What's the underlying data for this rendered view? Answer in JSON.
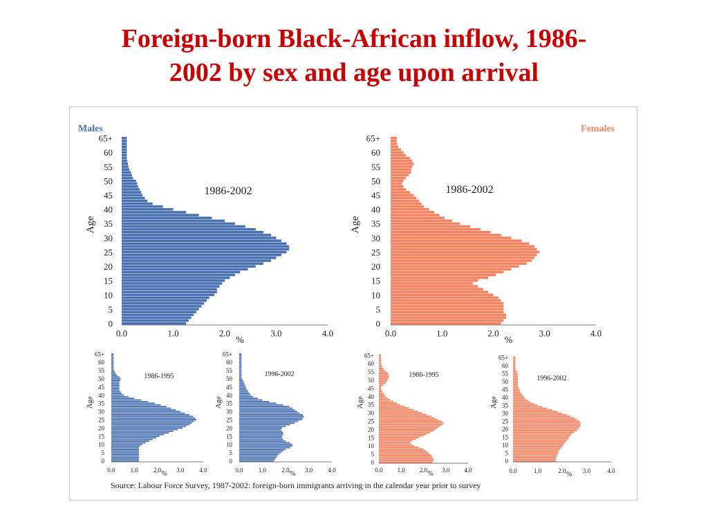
{
  "slide": {
    "title_line1": "Foreign-born Black-African inflow, 1986-",
    "title_line2": "2002 by sex and age upon arrival",
    "source": "Source: Labour Force Survey, 1987-2002: foreign-born immigrants arriving in the calendar year prior to survey"
  },
  "colors": {
    "males": "#4a72b0",
    "females": "#f8825f",
    "title": "#cc0000"
  },
  "chart_data": [
    {
      "type": "bar",
      "orientation": "horizontal",
      "panel": "Males",
      "period": "1986-2002",
      "ylabel": "Age",
      "xlabel": "%",
      "xlim": [
        0,
        4
      ],
      "xticks": [
        "0.0",
        "1.0",
        "2.0",
        "3.0",
        "4.0"
      ],
      "yticks": [
        "0",
        "5",
        "10",
        "15",
        "20",
        "25",
        "30",
        "35",
        "40",
        "45",
        "50",
        "55",
        "60",
        "65+"
      ],
      "color": "#4a72b0",
      "ages": [
        0,
        1,
        2,
        3,
        4,
        5,
        6,
        7,
        8,
        9,
        10,
        11,
        12,
        13,
        14,
        15,
        16,
        17,
        18,
        19,
        20,
        21,
        22,
        23,
        24,
        25,
        26,
        27,
        28,
        29,
        30,
        31,
        32,
        33,
        34,
        35,
        36,
        37,
        38,
        39,
        40,
        41,
        42,
        43,
        44,
        45,
        46,
        47,
        48,
        49,
        50,
        51,
        52,
        53,
        54,
        55,
        56,
        57,
        58,
        59,
        60,
        61,
        62,
        63,
        64,
        65
      ],
      "values": [
        1.25,
        1.3,
        1.35,
        1.4,
        1.45,
        1.5,
        1.55,
        1.6,
        1.65,
        1.7,
        1.8,
        1.85,
        1.85,
        1.9,
        1.95,
        2.0,
        2.1,
        2.2,
        2.3,
        2.45,
        2.6,
        2.75,
        2.9,
        3.0,
        3.1,
        3.2,
        3.25,
        3.25,
        3.2,
        3.1,
        3.0,
        2.9,
        2.75,
        2.6,
        2.4,
        2.2,
        2.0,
        1.75,
        1.5,
        1.25,
        1.0,
        0.8,
        0.6,
        0.5,
        0.45,
        0.4,
        0.38,
        0.35,
        0.32,
        0.3,
        0.28,
        0.22,
        0.2,
        0.18,
        0.15,
        0.13,
        0.12,
        0.11,
        0.1,
        0.1,
        0.1,
        0.1,
        0.1,
        0.1,
        0.1,
        0.1
      ]
    },
    {
      "type": "bar",
      "orientation": "horizontal",
      "panel": "Females",
      "period": "1986-2002",
      "ylabel": "Age",
      "xlabel": "%",
      "xlim": [
        0,
        4
      ],
      "xticks": [
        "0.0",
        "1.0",
        "2.0",
        "3.0",
        "4.0"
      ],
      "yticks": [
        "0",
        "5",
        "10",
        "15",
        "20",
        "25",
        "30",
        "35",
        "40",
        "45",
        "50",
        "55",
        "60",
        "65+"
      ],
      "color": "#f8825f",
      "ages": [
        0,
        1,
        2,
        3,
        4,
        5,
        6,
        7,
        8,
        9,
        10,
        11,
        12,
        13,
        14,
        15,
        16,
        17,
        18,
        19,
        20,
        21,
        22,
        23,
        24,
        25,
        26,
        27,
        28,
        29,
        30,
        31,
        32,
        33,
        34,
        35,
        36,
        37,
        38,
        39,
        40,
        41,
        42,
        43,
        44,
        45,
        46,
        47,
        48,
        49,
        50,
        51,
        52,
        53,
        54,
        55,
        56,
        57,
        58,
        59,
        60,
        61,
        62,
        63,
        64,
        65
      ],
      "values": [
        2.15,
        2.2,
        2.25,
        2.25,
        2.2,
        2.2,
        2.2,
        2.2,
        2.15,
        2.1,
        2.0,
        1.9,
        1.8,
        1.7,
        1.6,
        1.7,
        1.9,
        2.05,
        2.2,
        2.35,
        2.5,
        2.65,
        2.75,
        2.8,
        2.85,
        2.9,
        2.85,
        2.8,
        2.7,
        2.55,
        2.35,
        2.15,
        1.95,
        1.75,
        1.55,
        1.35,
        1.2,
        1.05,
        0.95,
        0.85,
        0.75,
        0.65,
        0.6,
        0.55,
        0.5,
        0.45,
        0.38,
        0.3,
        0.25,
        0.22,
        0.25,
        0.3,
        0.35,
        0.4,
        0.4,
        0.42,
        0.45,
        0.42,
        0.38,
        0.3,
        0.25,
        0.2,
        0.15,
        0.12,
        0.12,
        0.12
      ]
    },
    {
      "type": "bar",
      "orientation": "horizontal",
      "panel": "Males",
      "period": "1986-1995",
      "ylabel": "Age",
      "xlabel": "%",
      "xlim": [
        0,
        4
      ],
      "xticks": [
        "0.0",
        "1.0",
        "2.0",
        "3.0",
        "4.0"
      ],
      "yticks": [
        "0",
        "5",
        "10",
        "15",
        "20",
        "25",
        "30",
        "35",
        "40",
        "45",
        "50",
        "55",
        "60",
        "65+"
      ],
      "color": "#4a72b0",
      "ages": [
        0,
        1,
        2,
        3,
        4,
        5,
        6,
        7,
        8,
        9,
        10,
        11,
        12,
        13,
        14,
        15,
        16,
        17,
        18,
        19,
        20,
        21,
        22,
        23,
        24,
        25,
        26,
        27,
        28,
        29,
        30,
        31,
        32,
        33,
        34,
        35,
        36,
        37,
        38,
        39,
        40,
        41,
        42,
        43,
        44,
        45,
        46,
        47,
        48,
        49,
        50,
        51,
        52,
        53,
        54,
        55,
        56,
        57,
        58,
        59,
        60,
        61,
        62,
        63,
        64,
        65
      ],
      "values": [
        1.2,
        1.2,
        1.2,
        1.2,
        1.2,
        1.2,
        1.2,
        1.2,
        1.2,
        1.25,
        1.35,
        1.5,
        1.65,
        1.8,
        1.95,
        2.1,
        2.3,
        2.5,
        2.7,
        2.9,
        3.1,
        3.25,
        3.4,
        3.5,
        3.6,
        3.7,
        3.65,
        3.55,
        3.4,
        3.2,
        3.0,
        2.8,
        2.6,
        2.4,
        2.15,
        1.9,
        1.6,
        1.3,
        1.0,
        0.75,
        0.55,
        0.45,
        0.4,
        0.35,
        0.35,
        0.35,
        0.35,
        0.35,
        0.35,
        0.4,
        0.4,
        0.35,
        0.25,
        0.2,
        0.15,
        0.12,
        0.1,
        0.1,
        0.1,
        0.1,
        0.1,
        0.1,
        0.1,
        0.1,
        0.1,
        0.1
      ]
    },
    {
      "type": "bar",
      "orientation": "horizontal",
      "panel": "Males",
      "period": "1996-2002",
      "ylabel": "Age",
      "xlabel": "%",
      "xlim": [
        0,
        4
      ],
      "xticks": [
        "0.0",
        "1.0",
        "2.0",
        "3.0",
        "4.0"
      ],
      "yticks": [
        "0",
        "5",
        "10",
        "15",
        "20",
        "25",
        "30",
        "35",
        "40",
        "45",
        "50",
        "55",
        "60",
        "65+"
      ],
      "color": "#4a72b0",
      "ages": [
        0,
        1,
        2,
        3,
        4,
        5,
        6,
        7,
        8,
        9,
        10,
        11,
        12,
        13,
        14,
        15,
        16,
        17,
        18,
        19,
        20,
        21,
        22,
        23,
        24,
        25,
        26,
        27,
        28,
        29,
        30,
        31,
        32,
        33,
        34,
        35,
        36,
        37,
        38,
        39,
        40,
        41,
        42,
        43,
        44,
        45,
        46,
        47,
        48,
        49,
        50,
        51,
        52,
        53,
        54,
        55,
        56,
        57,
        58,
        59,
        60,
        61,
        62,
        63,
        64,
        65
      ],
      "values": [
        1.5,
        1.55,
        1.6,
        1.65,
        1.7,
        1.8,
        1.9,
        2.0,
        2.2,
        2.3,
        2.3,
        2.2,
        2.0,
        1.9,
        1.85,
        1.85,
        1.9,
        1.9,
        1.85,
        1.8,
        1.85,
        2.0,
        2.2,
        2.4,
        2.55,
        2.7,
        2.75,
        2.8,
        2.75,
        2.6,
        2.5,
        2.4,
        2.3,
        2.15,
        1.9,
        1.6,
        1.3,
        1.0,
        0.8,
        0.6,
        0.5,
        0.45,
        0.4,
        0.35,
        0.3,
        0.28,
        0.25,
        0.22,
        0.2,
        0.15,
        0.12,
        0.1,
        0.1,
        0.1,
        0.1,
        0.1,
        0.1,
        0.1,
        0.1,
        0.1,
        0.1,
        0.1,
        0.1,
        0.1,
        0.1,
        0.1
      ]
    },
    {
      "type": "bar",
      "orientation": "horizontal",
      "panel": "Females",
      "period": "1986-1995",
      "ylabel": "Age",
      "xlabel": "%",
      "xlim": [
        0,
        4
      ],
      "xticks": [
        "0.0",
        "1.0",
        "2.0",
        "3.0",
        "4.0"
      ],
      "yticks": [
        "0",
        "5",
        "10",
        "15",
        "20",
        "25",
        "30",
        "35",
        "40",
        "45",
        "50",
        "55",
        "60",
        "65+"
      ],
      "color": "#f8825f",
      "ages": [
        0,
        1,
        2,
        3,
        4,
        5,
        6,
        7,
        8,
        9,
        10,
        11,
        12,
        13,
        14,
        15,
        16,
        17,
        18,
        19,
        20,
        21,
        22,
        23,
        24,
        25,
        26,
        27,
        28,
        29,
        30,
        31,
        32,
        33,
        34,
        35,
        36,
        37,
        38,
        39,
        40,
        41,
        42,
        43,
        44,
        45,
        46,
        47,
        48,
        49,
        50,
        51,
        52,
        53,
        54,
        55,
        56,
        57,
        58,
        59,
        60,
        61,
        62,
        63,
        64,
        65
      ],
      "values": [
        2.4,
        2.45,
        2.45,
        2.4,
        2.35,
        2.3,
        2.2,
        2.1,
        2.0,
        1.8,
        1.6,
        1.45,
        1.4,
        1.5,
        1.65,
        1.8,
        2.0,
        2.15,
        2.3,
        2.45,
        2.55,
        2.65,
        2.75,
        2.85,
        2.9,
        2.8,
        2.65,
        2.5,
        2.35,
        2.15,
        1.95,
        1.75,
        1.55,
        1.35,
        1.15,
        0.95,
        0.8,
        0.65,
        0.5,
        0.4,
        0.3,
        0.25,
        0.2,
        0.15,
        0.12,
        0.1,
        0.1,
        0.2,
        0.3,
        0.35,
        0.4,
        0.42,
        0.45,
        0.45,
        0.42,
        0.35,
        0.25,
        0.2,
        0.15,
        0.12,
        0.1,
        0.1,
        0.1,
        0.1,
        0.1,
        0.1
      ]
    },
    {
      "type": "bar",
      "orientation": "horizontal",
      "panel": "Females",
      "period": "1996-2002",
      "ylabel": "Age",
      "xlabel": "%",
      "xlim": [
        0,
        4
      ],
      "xticks": [
        "0.0",
        "1.0",
        "2.0",
        "3.0",
        "4.0"
      ],
      "yticks": [
        "0",
        "5",
        "10",
        "15",
        "20",
        "25",
        "30",
        "35",
        "40",
        "45",
        "50",
        "55",
        "60",
        "65+"
      ],
      "color": "#f8825f",
      "ages": [
        0,
        1,
        2,
        3,
        4,
        5,
        6,
        7,
        8,
        9,
        10,
        11,
        12,
        13,
        14,
        15,
        16,
        17,
        18,
        19,
        20,
        21,
        22,
        23,
        24,
        25,
        26,
        27,
        28,
        29,
        30,
        31,
        32,
        33,
        34,
        35,
        36,
        37,
        38,
        39,
        40,
        41,
        42,
        43,
        44,
        45,
        46,
        47,
        48,
        49,
        50,
        51,
        52,
        53,
        54,
        55,
        56,
        57,
        58,
        59,
        60,
        61,
        62,
        63,
        64,
        65
      ],
      "values": [
        1.75,
        1.75,
        1.75,
        1.8,
        1.8,
        1.85,
        1.85,
        1.9,
        1.95,
        2.0,
        2.05,
        2.1,
        2.15,
        2.2,
        2.25,
        2.3,
        2.35,
        2.4,
        2.5,
        2.6,
        2.65,
        2.7,
        2.75,
        2.75,
        2.75,
        2.7,
        2.6,
        2.5,
        2.35,
        2.2,
        2.0,
        1.8,
        1.6,
        1.4,
        1.2,
        1.0,
        0.85,
        0.7,
        0.6,
        0.5,
        0.45,
        0.4,
        0.35,
        0.3,
        0.28,
        0.25,
        0.22,
        0.2,
        0.2,
        0.2,
        0.2,
        0.2,
        0.2,
        0.2,
        0.2,
        0.18,
        0.15,
        0.12,
        0.1,
        0.1,
        0.1,
        0.1,
        0.1,
        0.1,
        0.1,
        0.1
      ]
    }
  ]
}
